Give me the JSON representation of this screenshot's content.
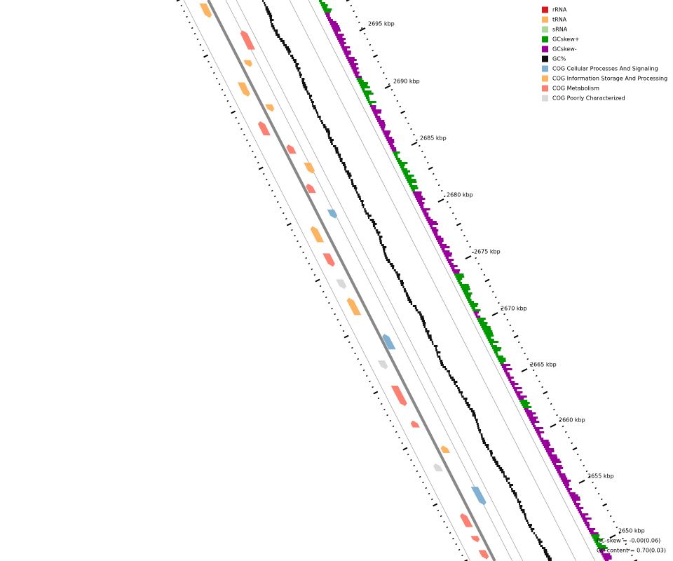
{
  "legend": [
    {
      "label": "rRNA",
      "color": "#d7191c"
    },
    {
      "label": "tRNA",
      "color": "#fdb462"
    },
    {
      "label": "sRNA",
      "color": "#a6d89b"
    },
    {
      "label": "GCskew+",
      "color": "#009900"
    },
    {
      "label": "GCskew-",
      "color": "#990099"
    },
    {
      "label": "GC%",
      "color": "#111111"
    },
    {
      "label": "COG Cellular Processes And Signaling",
      "color": "#80b1d3"
    },
    {
      "label": "COG Information Storage And Processing",
      "color": "#fdb462"
    },
    {
      "label": "COG Metabolism",
      "color": "#fb8072"
    },
    {
      "label": "COG Poorly Characterized",
      "color": "#d9d9d9"
    }
  ],
  "ticks": [
    "2695 kbp",
    "2690 kbp",
    "2685 kbp",
    "2680 kbp",
    "2675 kbp",
    "2670 kbp",
    "2665 kbp",
    "2660 kbp",
    "2655 kbp",
    "2650 kbp"
  ],
  "footer": [
    "GC-skew = -0.00(0.06)",
    "GC-content = 0.70(0.03)"
  ]
}
